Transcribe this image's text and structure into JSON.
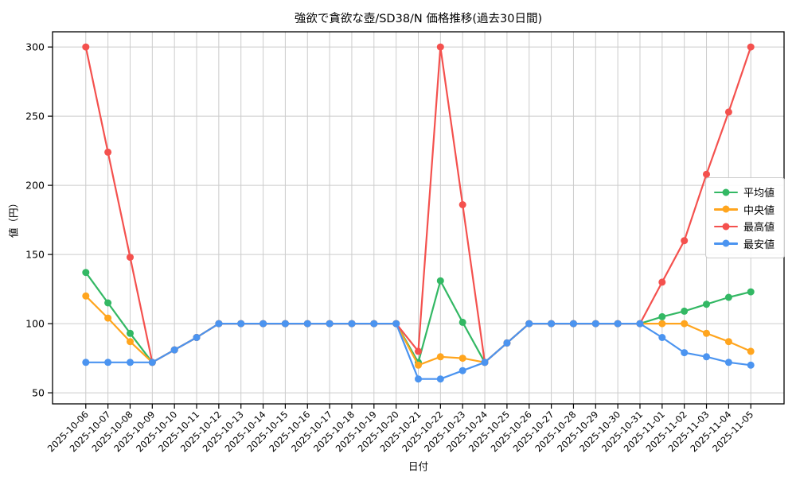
{
  "chart_data": {
    "type": "line",
    "title": "強欲で貪欲な壺/SD38/N 価格推移(過去30日間)",
    "xlabel": "日付",
    "ylabel": "値（円）",
    "x": [
      "2025-10-06",
      "2025-10-07",
      "2025-10-08",
      "2025-10-09",
      "2025-10-10",
      "2025-10-11",
      "2025-10-12",
      "2025-10-13",
      "2025-10-14",
      "2025-10-15",
      "2025-10-16",
      "2025-10-17",
      "2025-10-18",
      "2025-10-19",
      "2025-10-20",
      "2025-10-21",
      "2025-10-22",
      "2025-10-23",
      "2025-10-24",
      "2025-10-25",
      "2025-10-26",
      "2025-10-27",
      "2025-10-28",
      "2025-10-29",
      "2025-10-30",
      "2025-10-31",
      "2025-11-01",
      "2025-11-02",
      "2025-11-03",
      "2025-11-04",
      "2025-11-05"
    ],
    "yticks": [
      50,
      100,
      150,
      200,
      250,
      300
    ],
    "ylim": [
      42,
      311
    ],
    "x_margin": 1.5,
    "grid": true,
    "legend_position": "center right",
    "colors": {
      "grid": "#cccccc",
      "spine": "#000000",
      "background": "#ffffff"
    },
    "series": [
      {
        "key": "average",
        "name": "平均値",
        "color": "#33b864",
        "values": [
          137,
          115,
          93,
          72,
          81,
          90,
          100,
          100,
          100,
          100,
          100,
          100,
          100,
          100,
          100,
          72,
          131,
          101,
          72,
          86,
          100,
          100,
          100,
          100,
          100,
          100,
          105,
          109,
          114,
          119,
          123
        ]
      },
      {
        "key": "median",
        "name": "中央値",
        "color": "#ffa51e",
        "values": [
          120,
          104,
          87,
          72,
          81,
          90,
          100,
          100,
          100,
          100,
          100,
          100,
          100,
          100,
          100,
          70,
          76,
          75,
          72,
          86,
          100,
          100,
          100,
          100,
          100,
          100,
          100,
          100,
          93,
          87,
          80
        ]
      },
      {
        "key": "max",
        "name": "最高値",
        "color": "#f4514e",
        "values": [
          300,
          224,
          148,
          72,
          81,
          90,
          100,
          100,
          100,
          100,
          100,
          100,
          100,
          100,
          100,
          80,
          300,
          186,
          72,
          86,
          100,
          100,
          100,
          100,
          100,
          100,
          130,
          160,
          208,
          253,
          300
        ]
      },
      {
        "key": "min",
        "name": "最安値",
        "color": "#4b94f0",
        "values": [
          72,
          72,
          72,
          72,
          81,
          90,
          100,
          100,
          100,
          100,
          100,
          100,
          100,
          100,
          100,
          60,
          60,
          66,
          72,
          86,
          100,
          100,
          100,
          100,
          100,
          100,
          90,
          79,
          76,
          72,
          70
        ]
      }
    ]
  }
}
